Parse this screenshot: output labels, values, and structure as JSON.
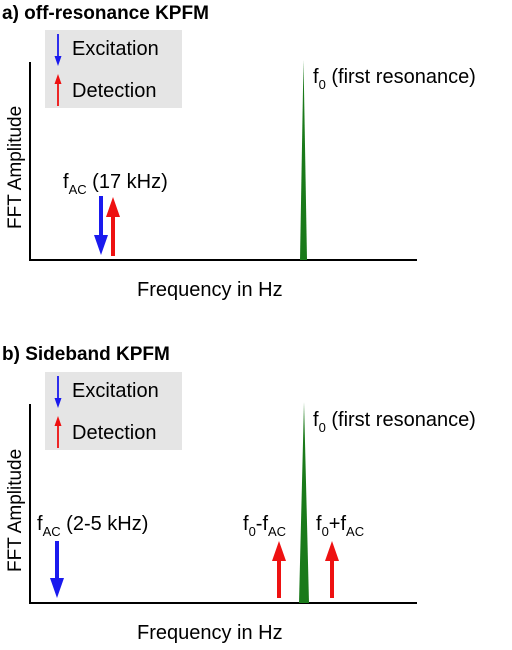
{
  "colors": {
    "excitation": "#1a1aee",
    "detection": "#ee1111",
    "resonance": "#1a7a1a",
    "legend_bg": "#e5e5e5",
    "axis": "#000000"
  },
  "panels": [
    {
      "title": "a) off-resonance KPFM",
      "legend": {
        "excitation_label": "Excitation",
        "detection_label": "Detection"
      },
      "ylabel": "FFT Amplitude",
      "xlabel": "Frequency in Hz",
      "peak_label": {
        "base": "f",
        "sub": "0",
        "rest": " (first resonance)"
      },
      "fac_label": {
        "base": "f",
        "sub": "AC",
        "rest": " (17 kHz)"
      }
    },
    {
      "title": "b) Sideband KPFM",
      "legend": {
        "excitation_label": "Excitation",
        "detection_label": "Detection"
      },
      "ylabel": "FFT Amplitude",
      "xlabel": "Frequency in Hz",
      "peak_label": {
        "base": "f",
        "sub": "0",
        "rest": " (first resonance)"
      },
      "fac_label": {
        "base": "f",
        "sub": "AC",
        "rest": " (2-5 kHz)"
      },
      "sideband_minus": {
        "b1": "f",
        "s1": "0",
        "mid": "-f",
        "s2": "AC"
      },
      "sideband_plus": {
        "b1": "f",
        "s1": "0",
        "mid": "+f",
        "s2": "AC"
      }
    }
  ]
}
